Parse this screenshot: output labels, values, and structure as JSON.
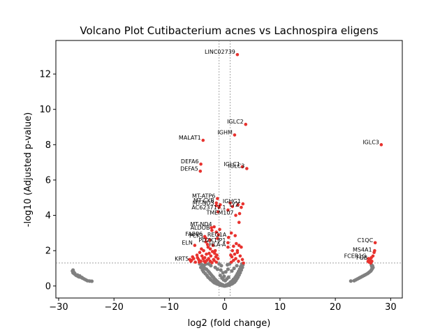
{
  "chart_data": {
    "type": "scatter",
    "title": "Volcano Plot Cutibacterium acnes vs Lachnospira eligens",
    "xlabel": "log2 (fold change)",
    "ylabel": "-log10 (Adjusted p-value)",
    "xlim": [
      -30.5,
      32.1
    ],
    "ylim": [
      -0.68,
      13.9
    ],
    "xticks": [
      -30,
      -20,
      -10,
      0,
      10,
      20,
      30
    ],
    "yticks": [
      0,
      2,
      4,
      6,
      8,
      10,
      12
    ],
    "thresholds": {
      "fold_change_x": [
        -1,
        1
      ],
      "pvalue_y": 1.3
    },
    "colors": {
      "significant": "#e8322e",
      "nonsignificant": "#808080",
      "threshold_line": "#808080"
    },
    "grid": false,
    "legend": "none",
    "significant_labeled": [
      {
        "gene": "LINC02739",
        "x": 2.3,
        "y": 13.1
      },
      {
        "gene": "IGLC2",
        "x": 3.8,
        "y": 9.15
      },
      {
        "gene": "IGHM",
        "x": 1.8,
        "y": 8.55
      },
      {
        "gene": "MALAT1",
        "x": -3.9,
        "y": 8.25
      },
      {
        "gene": "IGLC3",
        "x": 28.3,
        "y": 8.0
      },
      {
        "gene": "DEFA6",
        "x": -4.3,
        "y": 6.9
      },
      {
        "gene": "DEFA5",
        "x": -4.4,
        "y": 6.5
      },
      {
        "gene": "IGLC1",
        "x": 3.2,
        "y": 6.75
      },
      {
        "gene": "IGLC3",
        "x": 4.0,
        "y": 6.65
      },
      {
        "gene": "MT-ATP6",
        "x": -1.3,
        "y": 4.95
      },
      {
        "gene": "MT-CYB",
        "x": -1.5,
        "y": 4.7
      },
      {
        "gene": "IGHG1",
        "x": 3.3,
        "y": 4.65
      },
      {
        "gene": "MT-ND3",
        "x": -1.5,
        "y": 4.55
      },
      {
        "gene": "LYZ",
        "x": 3.0,
        "y": 4.45
      },
      {
        "gene": "AC623717.1",
        "x": 0.6,
        "y": 4.3
      },
      {
        "gene": "TMEM107",
        "x": 2.0,
        "y": 4.0
      },
      {
        "gene": "MT-ND4",
        "x": -1.9,
        "y": 3.35
      },
      {
        "gene": "ALDOB",
        "x": -2.3,
        "y": 3.15
      },
      {
        "gene": "REG1A",
        "x": 0.7,
        "y": 2.75
      },
      {
        "gene": "FABP6",
        "x": -3.6,
        "y": 2.8
      },
      {
        "gene": "PCK1",
        "x": -3.4,
        "y": 2.7
      },
      {
        "gene": "PDZK1IP1",
        "x": 0.6,
        "y": 2.45
      },
      {
        "gene": "ELN",
        "x": -5.4,
        "y": 2.3
      },
      {
        "gene": "HLA-A",
        "x": 0.6,
        "y": 2.2
      },
      {
        "gene": "C1QC",
        "x": 27.2,
        "y": 2.45
      },
      {
        "gene": "MS4A1",
        "x": 27.0,
        "y": 1.9
      },
      {
        "gene": "FCER1G",
        "x": 26.0,
        "y": 1.55
      },
      {
        "gene": "FGB",
        "x": 26.2,
        "y": 1.45
      },
      {
        "gene": "KRT5",
        "x": -6.1,
        "y": 1.4
      }
    ],
    "significant_unlabeled": [
      [
        -3.0,
        2.2
      ],
      [
        -2.6,
        2.1
      ],
      [
        -3.8,
        2.0
      ],
      [
        -2.2,
        1.95
      ],
      [
        -4.5,
        1.9
      ],
      [
        -1.8,
        1.85
      ],
      [
        -3.3,
        1.8
      ],
      [
        -5.0,
        1.75
      ],
      [
        -2.5,
        1.7
      ],
      [
        -4.1,
        1.7
      ],
      [
        -1.6,
        1.65
      ],
      [
        -3.6,
        1.6
      ],
      [
        -2.9,
        1.55
      ],
      [
        -5.6,
        1.55
      ],
      [
        -2.0,
        1.5
      ],
      [
        -4.7,
        1.5
      ],
      [
        -3.2,
        1.45
      ],
      [
        -1.9,
        1.45
      ],
      [
        -6.0,
        1.45
      ],
      [
        -2.6,
        1.4
      ],
      [
        -4.3,
        1.4
      ],
      [
        -3.5,
        1.35
      ],
      [
        -1.5,
        1.35
      ],
      [
        -5.3,
        1.35
      ],
      [
        -2.3,
        1.32
      ],
      [
        -4.9,
        1.6
      ],
      [
        -3.9,
        1.55
      ],
      [
        -2.8,
        1.85
      ],
      [
        -1.4,
        1.75
      ],
      [
        -4.2,
        2.1
      ],
      [
        -3.1,
        2.35
      ],
      [
        -2.1,
        2.3
      ],
      [
        -5.8,
        1.65
      ],
      [
        -6.3,
        1.5
      ],
      [
        -1.2,
        1.55
      ],
      [
        -2.7,
        2.6
      ],
      [
        -3.4,
        2.5
      ],
      [
        -1.7,
        2.0
      ],
      [
        -4.6,
        1.35
      ],
      [
        -3.7,
        1.4
      ],
      [
        2.1,
        2.4
      ],
      [
        2.6,
        2.3
      ],
      [
        1.6,
        2.25
      ],
      [
        3.0,
        2.2
      ],
      [
        1.4,
        2.0
      ],
      [
        2.3,
        1.9
      ],
      [
        1.8,
        1.8
      ],
      [
        2.8,
        1.7
      ],
      [
        1.3,
        1.65
      ],
      [
        2.0,
        1.55
      ],
      [
        3.2,
        1.5
      ],
      [
        1.6,
        1.45
      ],
      [
        2.5,
        1.4
      ],
      [
        1.2,
        1.35
      ],
      [
        3.4,
        1.3
      ],
      [
        -1.1,
        2.9
      ],
      [
        -1.5,
        3.05
      ],
      [
        -2.4,
        3.3
      ],
      [
        1.2,
        3.0
      ],
      [
        1.9,
        2.85
      ],
      [
        2.3,
        2.0
      ],
      [
        1.1,
        1.75
      ],
      [
        -1.3,
        2.7
      ],
      [
        -0.9,
        3.2
      ],
      [
        -1.0,
        4.45
      ],
      [
        -0.8,
        4.6
      ],
      [
        1.4,
        4.5
      ],
      [
        2.4,
        4.6
      ],
      [
        2.7,
        4.1
      ],
      [
        -1.2,
        4.2
      ],
      [
        1.0,
        4.7
      ],
      [
        2.6,
        3.6
      ],
      [
        26.5,
        1.6
      ],
      [
        26.3,
        1.5
      ],
      [
        26.6,
        1.4
      ],
      [
        26.1,
        1.35
      ],
      [
        26.4,
        1.3
      ],
      [
        27.1,
        2.0
      ],
      [
        26.8,
        1.7
      ],
      [
        25.9,
        1.4
      ]
    ],
    "nonsignificant": [
      [
        -27.5,
        0.85
      ],
      [
        -27.3,
        0.8
      ],
      [
        -27.4,
        0.75
      ],
      [
        -27.2,
        0.7
      ],
      [
        -27.0,
        0.65
      ],
      [
        -26.8,
        0.6
      ],
      [
        -26.5,
        0.55
      ],
      [
        -26.3,
        0.52
      ],
      [
        -26.0,
        0.5
      ],
      [
        -25.7,
        0.45
      ],
      [
        -25.4,
        0.4
      ],
      [
        -25.1,
        0.35
      ],
      [
        -24.8,
        0.3
      ],
      [
        -24.4,
        0.28
      ],
      [
        -24.0,
        0.27
      ],
      [
        -27.4,
        0.9
      ],
      [
        -27.1,
        0.72
      ],
      [
        -26.6,
        0.62
      ],
      [
        -26.2,
        0.57
      ],
      [
        -25.8,
        0.48
      ],
      [
        22.8,
        0.28
      ],
      [
        23.4,
        0.3
      ],
      [
        23.7,
        0.35
      ],
      [
        24.0,
        0.4
      ],
      [
        24.3,
        0.45
      ],
      [
        24.6,
        0.5
      ],
      [
        24.9,
        0.55
      ],
      [
        25.2,
        0.6
      ],
      [
        25.5,
        0.65
      ],
      [
        25.8,
        0.7
      ],
      [
        26.0,
        0.75
      ],
      [
        26.2,
        0.8
      ],
      [
        26.4,
        0.85
      ],
      [
        26.5,
        0.9
      ],
      [
        26.6,
        0.95
      ],
      [
        26.7,
        1.0
      ],
      [
        26.8,
        1.05
      ],
      [
        26.6,
        1.1
      ],
      [
        26.7,
        1.15
      ],
      [
        26.5,
        1.2
      ],
      [
        -4.0,
        0.9
      ],
      [
        -3.8,
        0.8
      ],
      [
        -3.5,
        0.7
      ],
      [
        -3.2,
        0.6
      ],
      [
        -3.0,
        0.5
      ],
      [
        -2.7,
        0.42
      ],
      [
        -2.5,
        0.35
      ],
      [
        -2.2,
        0.28
      ],
      [
        -2.0,
        0.22
      ],
      [
        -1.8,
        0.18
      ],
      [
        -1.5,
        0.14
      ],
      [
        -1.3,
        0.11
      ],
      [
        -1.0,
        0.08
      ],
      [
        -0.8,
        0.05
      ],
      [
        -0.5,
        0.03
      ],
      [
        -0.2,
        0.01
      ],
      [
        0.0,
        0.0
      ],
      [
        0.2,
        0.01
      ],
      [
        0.5,
        0.03
      ],
      [
        0.8,
        0.05
      ],
      [
        1.0,
        0.08
      ],
      [
        1.3,
        0.12
      ],
      [
        1.5,
        0.16
      ],
      [
        1.8,
        0.22
      ],
      [
        2.0,
        0.3
      ],
      [
        2.2,
        0.4
      ],
      [
        2.4,
        0.5
      ],
      [
        2.6,
        0.62
      ],
      [
        2.8,
        0.75
      ],
      [
        3.0,
        0.9
      ],
      [
        3.2,
        1.05
      ],
      [
        3.3,
        1.2
      ],
      [
        -4.3,
        1.05
      ],
      [
        -4.1,
        1.2
      ],
      [
        -3.9,
        1.1
      ],
      [
        -3.6,
        1.0
      ],
      [
        -3.3,
        0.95
      ],
      [
        -3.0,
        0.85
      ],
      [
        -2.8,
        0.78
      ],
      [
        -2.6,
        0.7
      ],
      [
        -2.4,
        0.62
      ],
      [
        -2.2,
        0.55
      ],
      [
        -2.0,
        0.48
      ],
      [
        -1.8,
        0.4
      ],
      [
        -1.6,
        0.34
      ],
      [
        -1.4,
        0.28
      ],
      [
        -1.2,
        0.22
      ],
      [
        -0.9,
        0.15
      ],
      [
        -0.6,
        0.1
      ],
      [
        -0.3,
        0.06
      ],
      [
        0.3,
        0.06
      ],
      [
        0.6,
        0.1
      ],
      [
        0.9,
        0.16
      ],
      [
        1.1,
        0.23
      ],
      [
        1.4,
        0.3
      ],
      [
        1.6,
        0.38
      ],
      [
        1.9,
        0.48
      ],
      [
        2.1,
        0.58
      ],
      [
        2.3,
        0.7
      ],
      [
        2.5,
        0.82
      ],
      [
        2.7,
        0.95
      ],
      [
        2.9,
        1.1
      ],
      [
        -0.8,
        0.6
      ],
      [
        -0.5,
        0.45
      ],
      [
        -0.2,
        0.35
      ],
      [
        0.1,
        0.3
      ],
      [
        0.4,
        0.4
      ],
      [
        0.7,
        0.5
      ],
      [
        -0.7,
        0.9
      ],
      [
        -0.3,
        0.75
      ],
      [
        0.2,
        0.8
      ],
      [
        0.6,
        0.95
      ],
      [
        -0.6,
        1.15
      ],
      [
        0.5,
        1.2
      ],
      [
        -1.0,
        1.25
      ],
      [
        0.9,
        1.25
      ],
      [
        -3.4,
        1.25
      ],
      [
        -2.5,
        1.15
      ],
      [
        -1.7,
        1.05
      ],
      [
        1.7,
        1.0
      ],
      [
        -4.5,
        1.25
      ],
      [
        -2.9,
        1.25
      ],
      [
        2.2,
        1.15
      ],
      [
        -1.3,
        0.95
      ],
      [
        1.3,
        0.85
      ],
      [
        -0.1,
        0.55
      ],
      [
        -3.7,
        1.18
      ],
      [
        3.1,
        1.25
      ]
    ]
  }
}
